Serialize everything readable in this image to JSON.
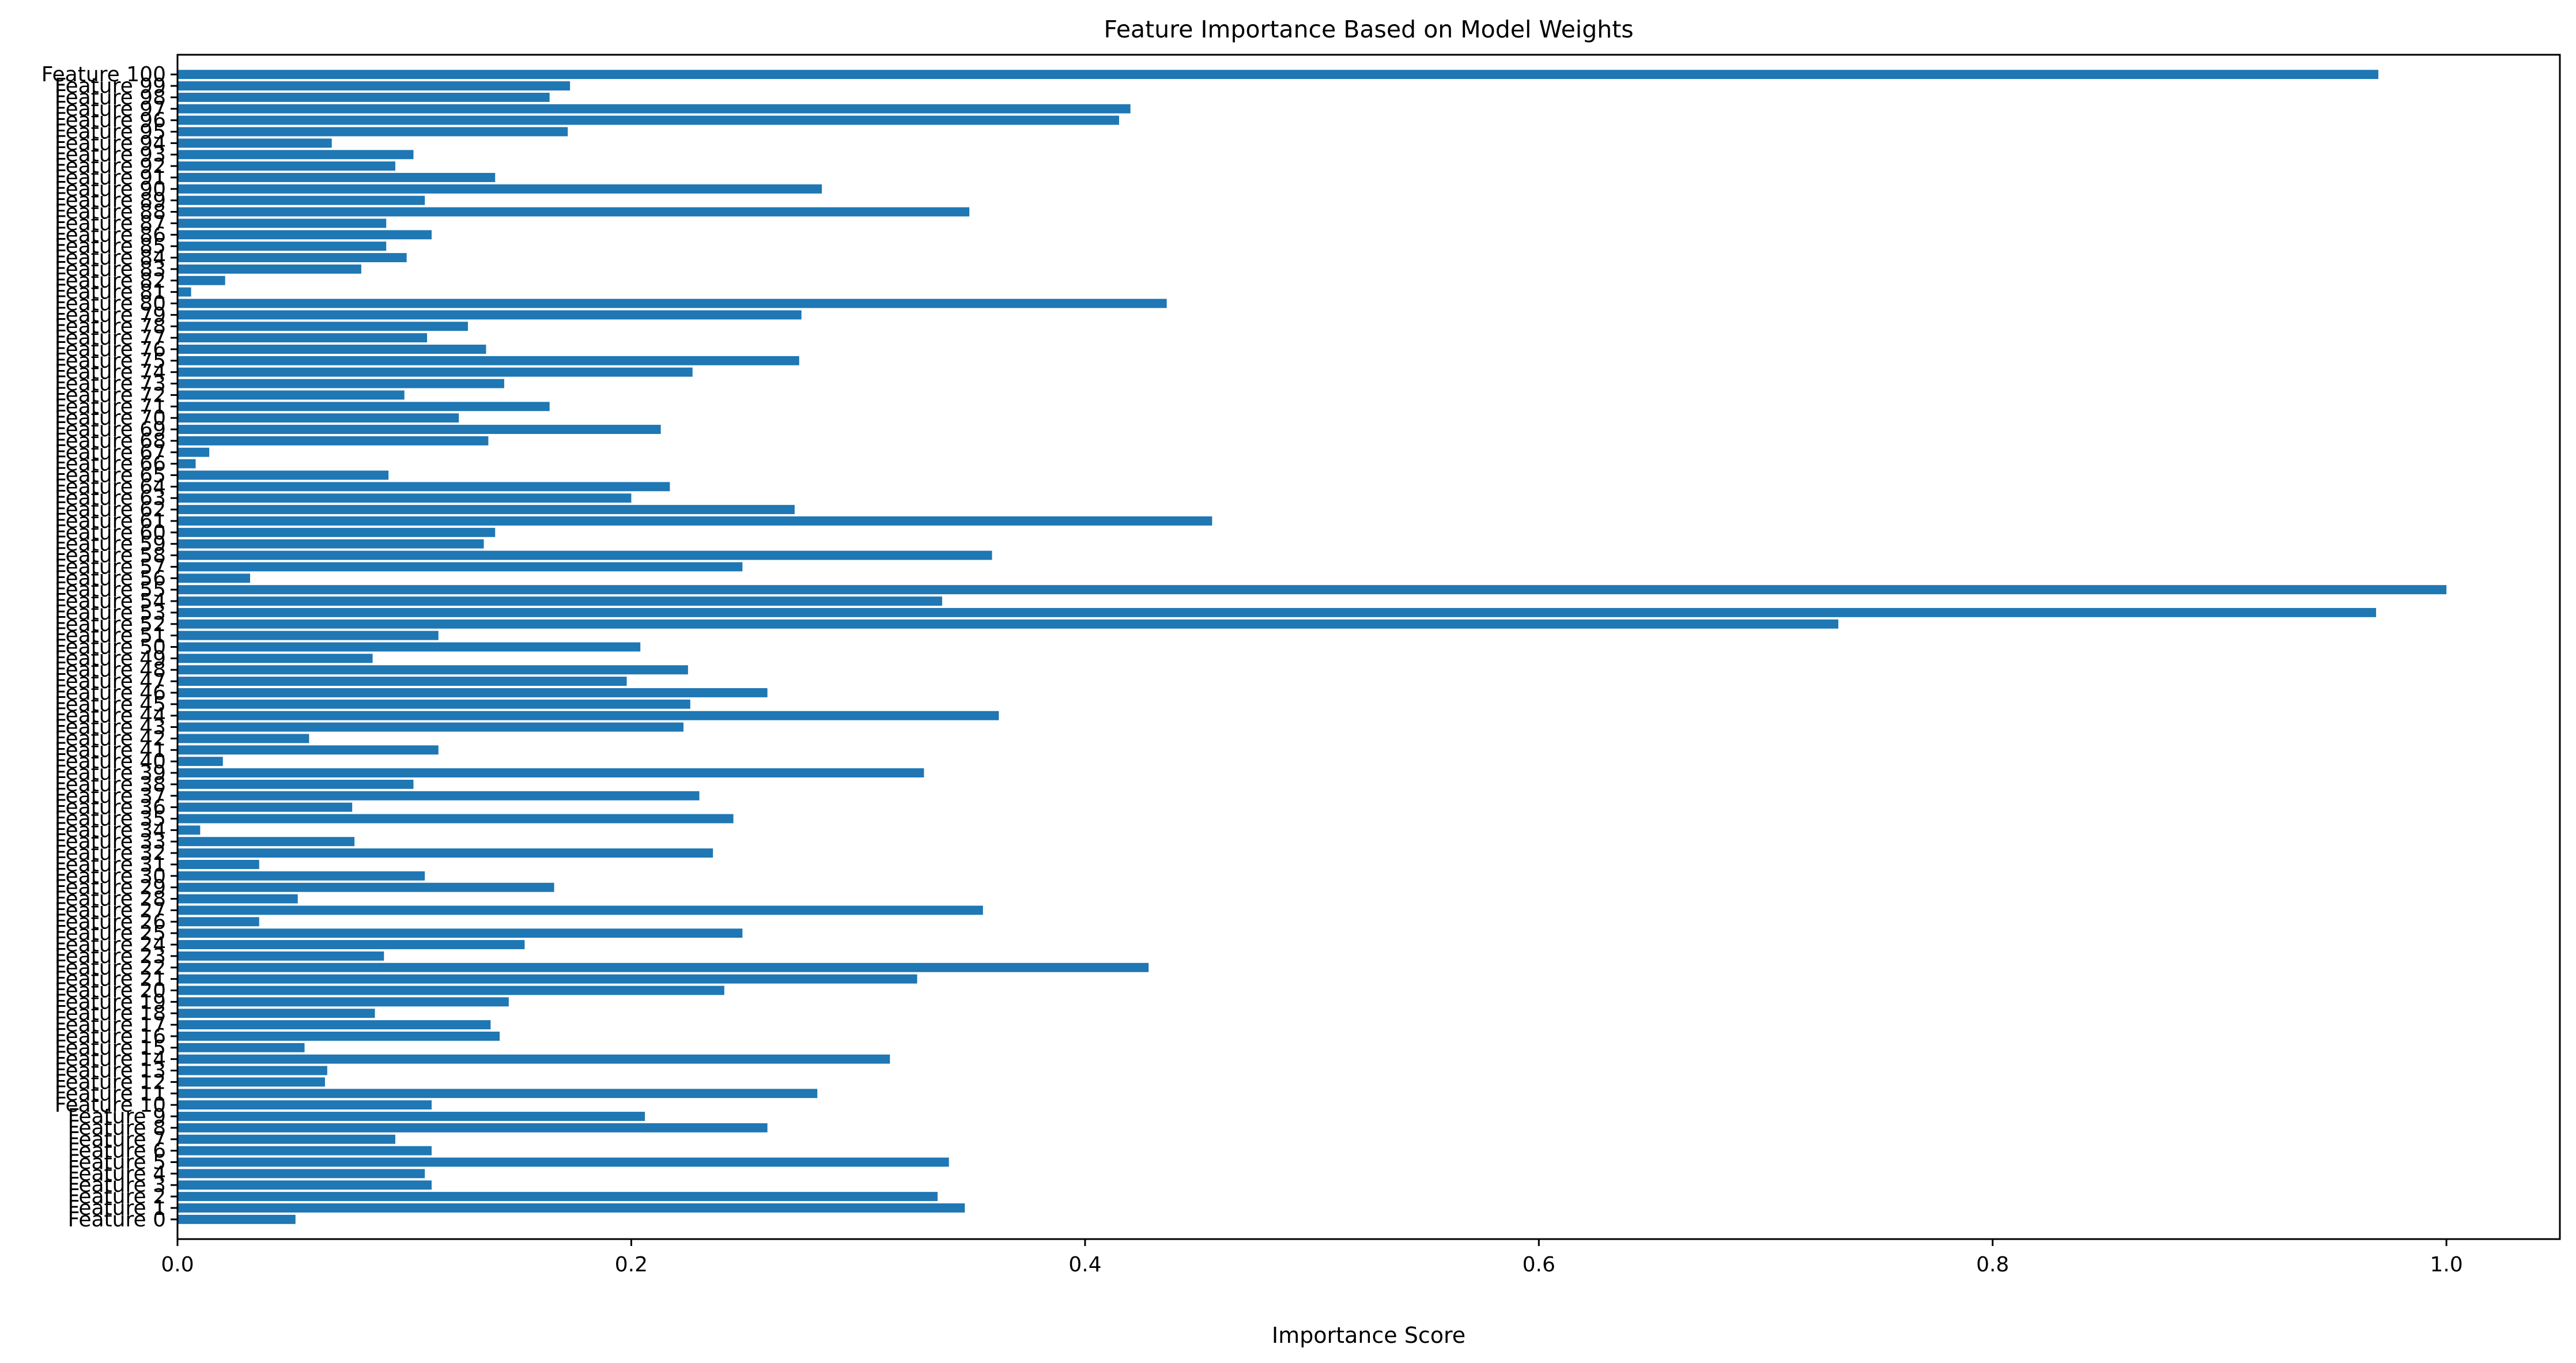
{
  "chart_data": {
    "type": "bar",
    "orientation": "horizontal",
    "title": "Feature Importance Based on Model Weights",
    "xlabel": "Importance Score",
    "ylabel": "",
    "xlim": [
      0,
      1.05
    ],
    "x_ticks": [
      0.0,
      0.2,
      0.4,
      0.6,
      0.8,
      1.0
    ],
    "x_tick_labels": [
      "0.0",
      "0.2",
      "0.4",
      "0.6",
      "0.8",
      "1.0"
    ],
    "grid": false,
    "legend": "none",
    "bar_color": "#1f77b4",
    "categories": [
      "Feature 0",
      "Feature 1",
      "Feature 2",
      "Feature 3",
      "Feature 4",
      "Feature 5",
      "Feature 6",
      "Feature 7",
      "Feature 8",
      "Feature 9",
      "Feature 10",
      "Feature 11",
      "Feature 12",
      "Feature 13",
      "Feature 14",
      "Feature 15",
      "Feature 16",
      "Feature 17",
      "Feature 18",
      "Feature 19",
      "Feature 20",
      "Feature 21",
      "Feature 22",
      "Feature 23",
      "Feature 24",
      "Feature 25",
      "Feature 26",
      "Feature 27",
      "Feature 28",
      "Feature 29",
      "Feature 30",
      "Feature 31",
      "Feature 32",
      "Feature 33",
      "Feature 34",
      "Feature 35",
      "Feature 36",
      "Feature 37",
      "Feature 38",
      "Feature 39",
      "Feature 40",
      "Feature 41",
      "Feature 42",
      "Feature 43",
      "Feature 44",
      "Feature 45",
      "Feature 46",
      "Feature 47",
      "Feature 48",
      "Feature 49",
      "Feature 50",
      "Feature 51",
      "Feature 52",
      "Feature 53",
      "Feature 54",
      "Feature 55",
      "Feature 56",
      "Feature 57",
      "Feature 58",
      "Feature 59",
      "Feature 60",
      "Feature 61",
      "Feature 62",
      "Feature 63",
      "Feature 64",
      "Feature 65",
      "Feature 66",
      "Feature 67",
      "Feature 68",
      "Feature 69",
      "Feature 70",
      "Feature 71",
      "Feature 72",
      "Feature 73",
      "Feature 74",
      "Feature 75",
      "Feature 76",
      "Feature 77",
      "Feature 78",
      "Feature 79",
      "Feature 80",
      "Feature 81",
      "Feature 82",
      "Feature 83",
      "Feature 84",
      "Feature 85",
      "Feature 86",
      "Feature 87",
      "Feature 88",
      "Feature 89",
      "Feature 90",
      "Feature 91",
      "Feature 92",
      "Feature 93",
      "Feature 94",
      "Feature 95",
      "Feature 96",
      "Feature 97",
      "Feature 98",
      "Feature 99",
      "Feature 100"
    ],
    "values": [
      0.052,
      0.347,
      0.335,
      0.112,
      0.109,
      0.34,
      0.112,
      0.096,
      0.26,
      0.206,
      0.112,
      0.282,
      0.065,
      0.066,
      0.314,
      0.056,
      0.142,
      0.138,
      0.087,
      0.146,
      0.241,
      0.326,
      0.428,
      0.091,
      0.153,
      0.249,
      0.036,
      0.355,
      0.053,
      0.166,
      0.109,
      0.036,
      0.236,
      0.078,
      0.01,
      0.245,
      0.077,
      0.23,
      0.104,
      0.329,
      0.02,
      0.115,
      0.058,
      0.223,
      0.362,
      0.226,
      0.26,
      0.198,
      0.225,
      0.086,
      0.204,
      0.115,
      0.732,
      0.969,
      0.337,
      1.0,
      0.032,
      0.249,
      0.359,
      0.135,
      0.14,
      0.456,
      0.272,
      0.2,
      0.217,
      0.093,
      0.008,
      0.014,
      0.137,
      0.213,
      0.124,
      0.164,
      0.1,
      0.144,
      0.227,
      0.274,
      0.136,
      0.11,
      0.128,
      0.275,
      0.436,
      0.006,
      0.021,
      0.081,
      0.101,
      0.092,
      0.112,
      0.092,
      0.349,
      0.109,
      0.284,
      0.14,
      0.096,
      0.104,
      0.068,
      0.172,
      0.415,
      0.42,
      0.164,
      0.173,
      0.97
    ]
  }
}
